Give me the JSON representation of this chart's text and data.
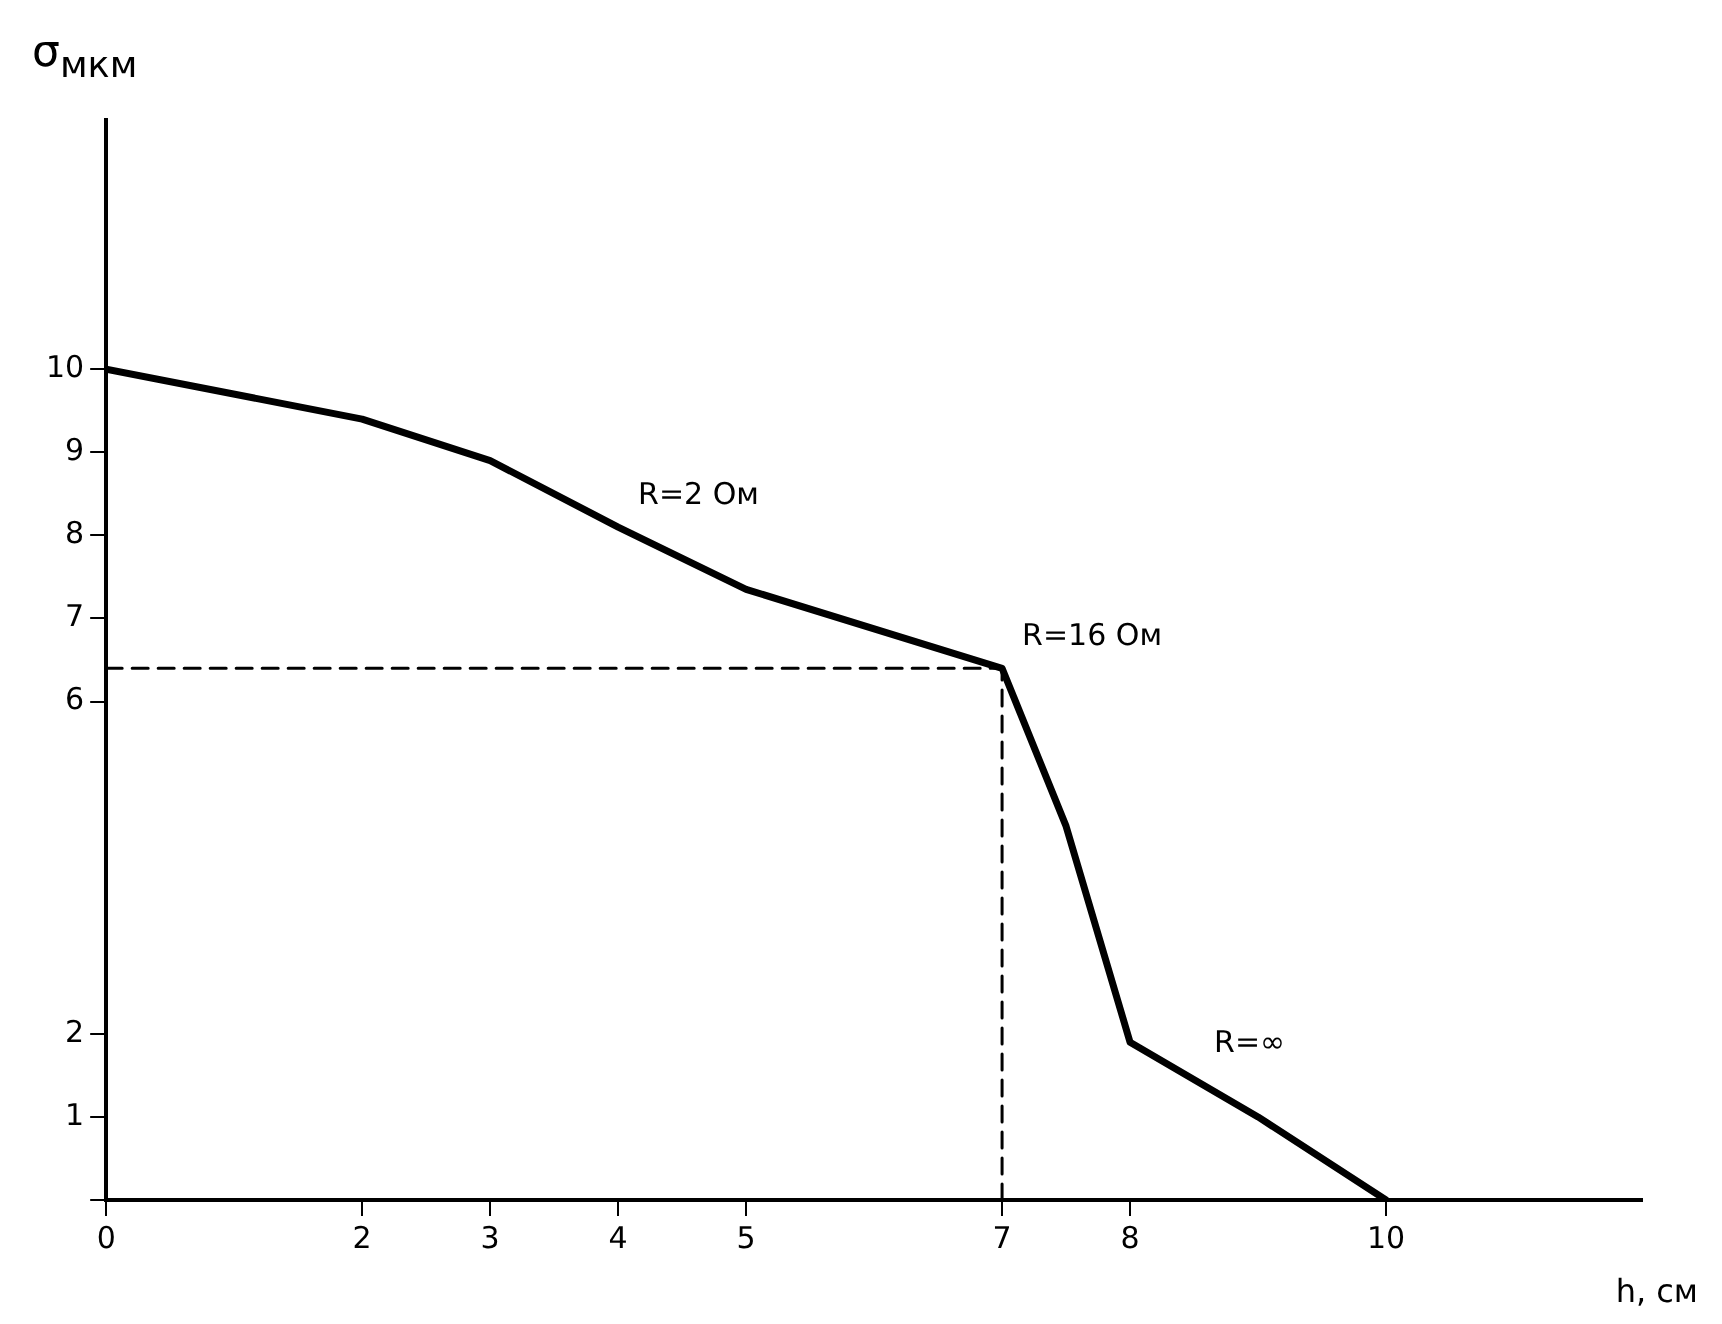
{
  "chart_data": {
    "type": "line",
    "xlabel": "h, см",
    "ylabel": "σ$_{мкм}$",
    "xlim": [
      0,
      12
    ],
    "ylim": [
      0,
      13
    ],
    "xticks": [
      0,
      2,
      3,
      4,
      5,
      7,
      8,
      10
    ],
    "yticks": [
      {
        "value": 0,
        "label": null
      },
      1,
      2,
      6,
      7,
      8,
      9,
      10
    ],
    "series": [
      {
        "color": "#000000",
        "x": [
          0,
          2,
          3,
          4,
          5,
          7,
          7.5,
          8,
          9,
          10
        ],
        "values": [
          10,
          9.4,
          8.9,
          8.1,
          7.35,
          6.4,
          4.5,
          1.9,
          1.0,
          0
        ],
        "line_style": "solid"
      },
      {
        "color": "#000000",
        "x": [
          0,
          7
        ],
        "values": [
          6.4,
          6.4
        ],
        "line_style": "dashed"
      },
      {
        "color": "#000000",
        "x": [
          7,
          7
        ],
        "values": [
          0,
          6.4
        ],
        "line_style": "dashed"
      }
    ],
    "annotations": [
      {
        "text": "R=2 Ом",
        "x": 4,
        "y": 8.1
      },
      {
        "text": "R=16 Ом",
        "x": 7,
        "y": 6.4
      },
      {
        "text": "R=∞",
        "x": 8.5,
        "y": 1.5
      }
    ],
    "grid": false,
    "legend": false,
    "marker": "none"
  }
}
